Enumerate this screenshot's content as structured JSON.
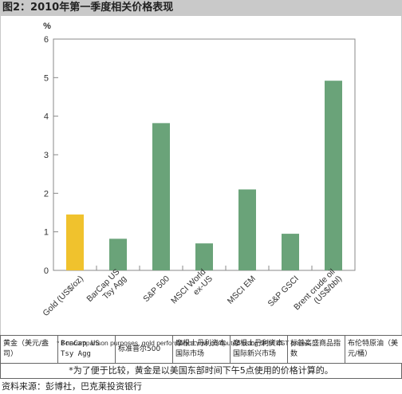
{
  "figure_title": "图2：2010年第一季度相关价格表现",
  "chart_data": {
    "type": "bar",
    "title": "",
    "ylabel": "%",
    "ylim": [
      0,
      6
    ],
    "yticks": [
      0,
      1,
      2,
      3,
      4,
      5,
      6
    ],
    "grid": false,
    "categories": [
      "Gold (US$/oz)",
      "BarCap US Tsy Agg",
      "S&P 500",
      "MSCI World ex-US",
      "MSCI EM",
      "S&P GSCI",
      "Brent crude oil (US$/bbl)"
    ],
    "category_lines": [
      [
        "Gold (US$/oz)"
      ],
      [
        "BarCap US",
        "Tsy Agg"
      ],
      [
        "S&P 500"
      ],
      [
        "MSCI World",
        "ex-US"
      ],
      [
        "MSCI EM"
      ],
      [
        "S&P GSCI"
      ],
      [
        "Brent crude oil",
        "(US$/bbl)"
      ]
    ],
    "values": [
      1.45,
      0.82,
      3.82,
      0.7,
      2.1,
      0.95,
      4.92
    ],
    "colors": [
      "#f0c22d",
      "#6aa379",
      "#6aa379",
      "#6aa379",
      "#6aa379",
      "#6aa379",
      "#6aa379"
    ]
  },
  "footnote_en": "* For comparison  purposes, gold performance was computed using 5PM EST prices.",
  "translations": [
    "黄金（美元/盎司）",
    "BraCap US Tsy Agg",
    "标准普尔500",
    "摩根士丹利资本国际市场",
    "摩根士丹利资本国际新兴市场",
    "标普高盛商品指数",
    "布伦特原油（美元/桶）"
  ],
  "footnote_cn": "*为了便于比较，黄金是以美国东部时间下午5点使用的价格计算的。",
  "source": "资料来源：彭博社，巴克莱投资银行"
}
